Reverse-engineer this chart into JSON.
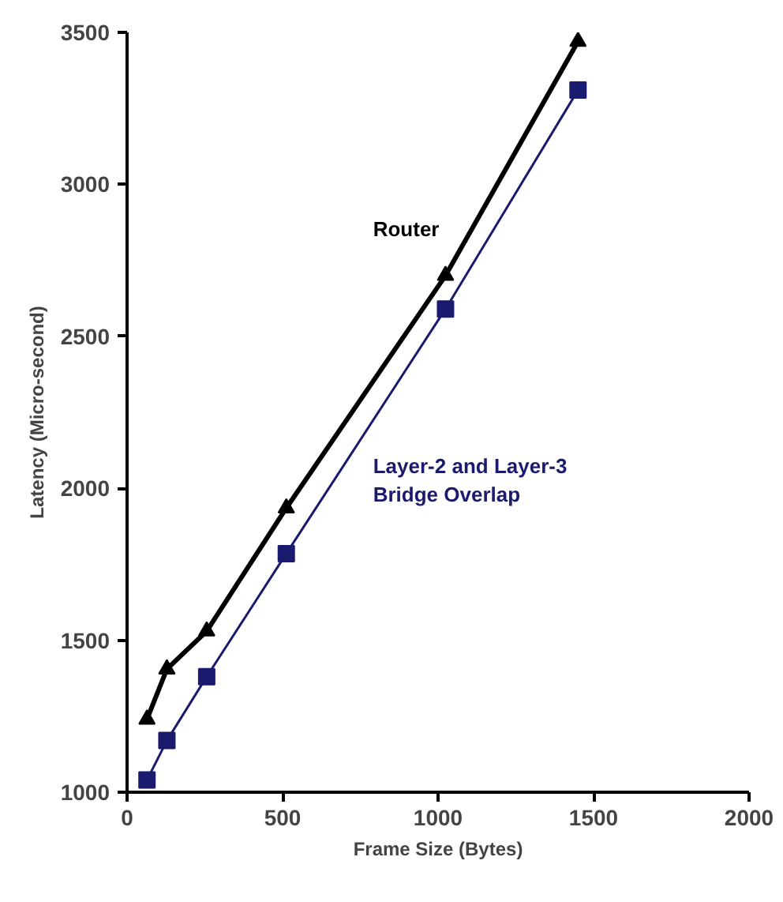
{
  "chart_data": {
    "type": "line",
    "xlabel": "Frame Size (Bytes)",
    "ylabel": "Latency (Micro-second)",
    "x": [
      64,
      128,
      256,
      512,
      1024,
      1450
    ],
    "series": [
      {
        "name": "Router",
        "color": "#000000",
        "marker": "triangle",
        "values": [
          1240,
          1405,
          1530,
          1935,
          2700,
          3470
        ]
      },
      {
        "name": "Layer-2 and Layer-3\nBridge Overlap",
        "color": "#1a1a6e",
        "marker": "square",
        "values": [
          1040,
          1170,
          1380,
          1785,
          2590,
          3310
        ]
      }
    ],
    "xlim": [
      0,
      2000
    ],
    "xticks": [
      0,
      500,
      1000,
      1500,
      2000
    ],
    "ylim": [
      1000,
      3500
    ],
    "yticks": [
      1000,
      1500,
      2000,
      2500,
      3000,
      3500
    ],
    "grid": false
  }
}
